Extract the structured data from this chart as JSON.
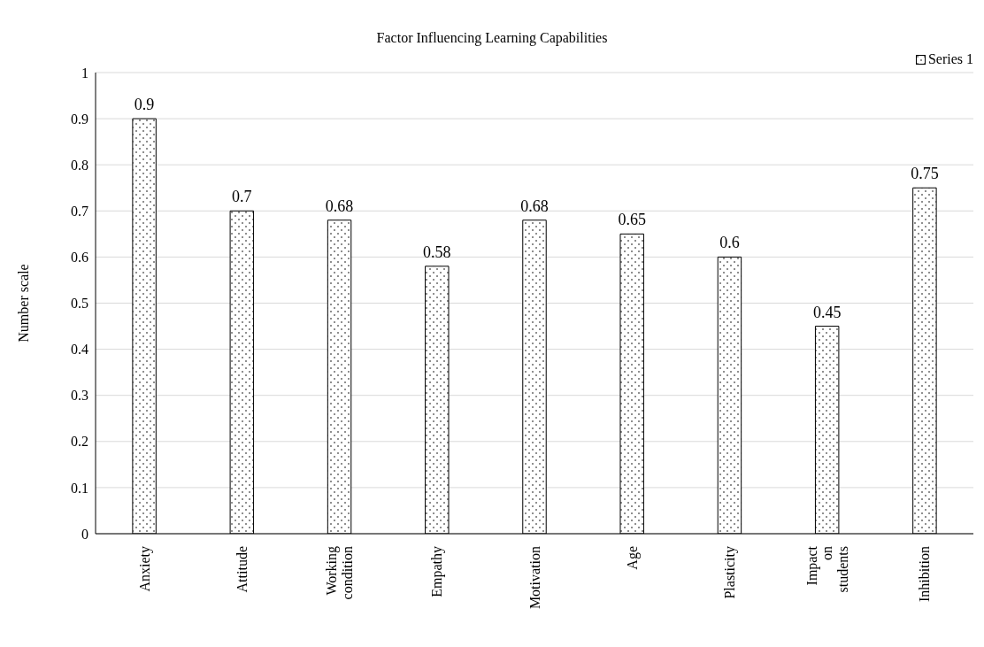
{
  "chart_data": {
    "type": "bar",
    "title": "Factor Influencing Learning Capabilities",
    "ylabel": "Number scale",
    "categories": [
      "Anxiety",
      "Attitude",
      "Working condition",
      "Empathy",
      "Motivation",
      "Age",
      "Plasticity",
      "Impact on students",
      "Inhibition"
    ],
    "series": [
      {
        "name": "Series 1",
        "color": "#000000",
        "values": [
          0.9,
          0.7,
          0.68,
          0.58,
          0.68,
          0.65,
          0.6,
          0.45,
          0.75
        ]
      }
    ],
    "ylim": [
      0,
      1
    ],
    "yticks": [
      0,
      0.1,
      0.2,
      0.3,
      0.4,
      0.5,
      0.6,
      0.7,
      0.8,
      0.9,
      1
    ],
    "grid": "y",
    "legend": "top right",
    "data_labels": true
  }
}
